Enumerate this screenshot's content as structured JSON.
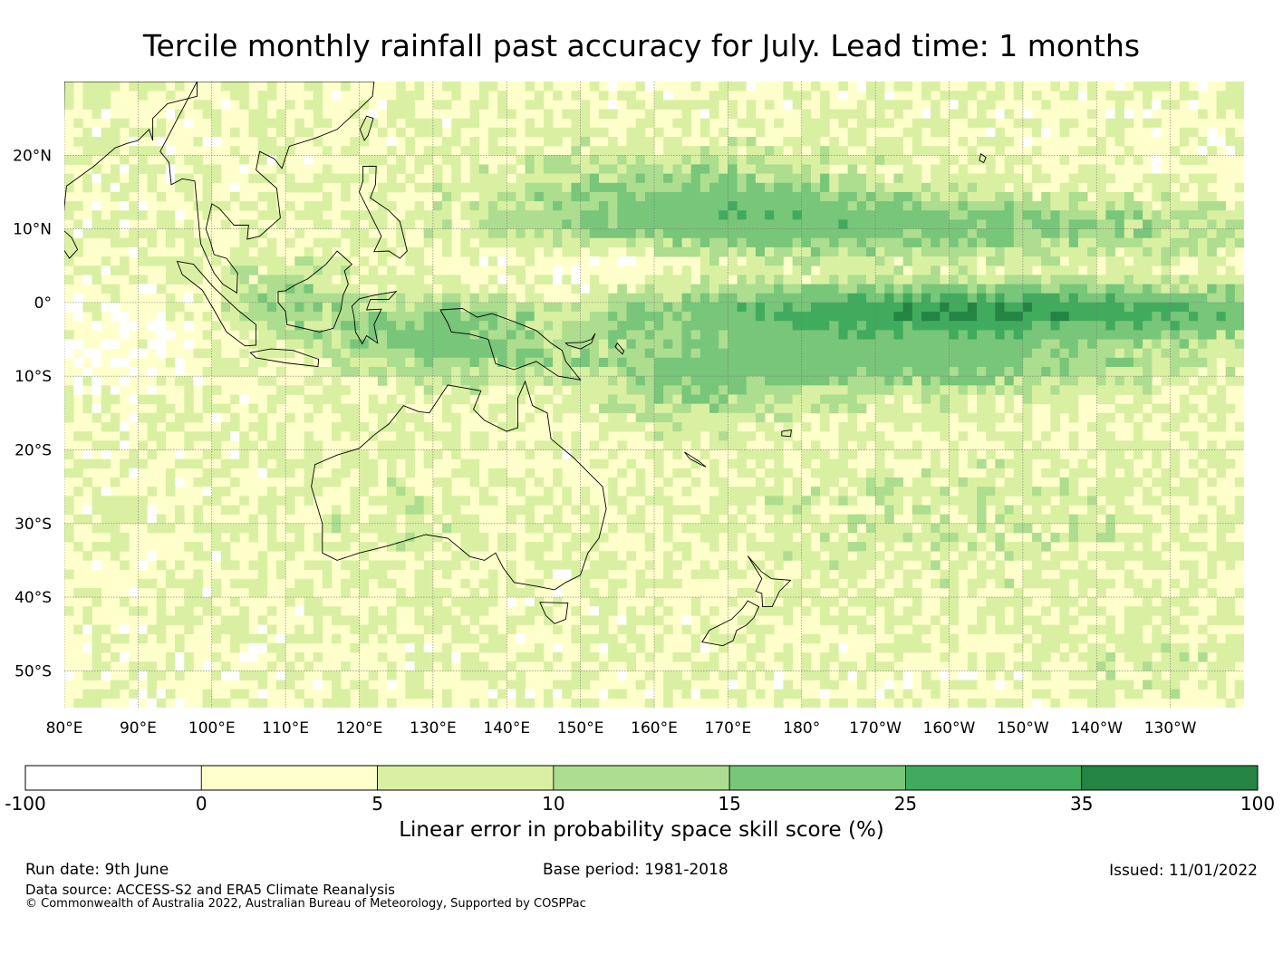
{
  "title": "Tercile monthly rainfall past accuracy for July. Lead time: 1 months",
  "map": {
    "lon_range": [
      80,
      240
    ],
    "lat_range": [
      -55,
      30
    ],
    "lon_ticks": [
      {
        "value": 80,
        "label": "80°E"
      },
      {
        "value": 90,
        "label": "90°E"
      },
      {
        "value": 100,
        "label": "100°E"
      },
      {
        "value": 110,
        "label": "110°E"
      },
      {
        "value": 120,
        "label": "120°E"
      },
      {
        "value": 130,
        "label": "130°E"
      },
      {
        "value": 140,
        "label": "140°E"
      },
      {
        "value": 150,
        "label": "150°E"
      },
      {
        "value": 160,
        "label": "160°E"
      },
      {
        "value": 170,
        "label": "170°E"
      },
      {
        "value": 180,
        "label": "180°"
      },
      {
        "value": 190,
        "label": "170°W"
      },
      {
        "value": 200,
        "label": "160°W"
      },
      {
        "value": 210,
        "label": "150°W"
      },
      {
        "value": 220,
        "label": "140°W"
      },
      {
        "value": 230,
        "label": "130°W"
      }
    ],
    "lat_ticks": [
      {
        "value": 20,
        "label": "20°N"
      },
      {
        "value": 10,
        "label": "10°N"
      },
      {
        "value": 0,
        "label": "0°"
      },
      {
        "value": -10,
        "label": "10°S"
      },
      {
        "value": -20,
        "label": "20°S"
      },
      {
        "value": -30,
        "label": "30°S"
      },
      {
        "value": -40,
        "label": "40°S"
      },
      {
        "value": -50,
        "label": "50°S"
      }
    ],
    "gridlines": true,
    "landmasses": [
      "Australia",
      "New Zealand",
      "New Guinea",
      "Borneo",
      "Sumatra",
      "Philippines",
      "Southeast Asia"
    ]
  },
  "colorbar": {
    "bins": [
      {
        "from": -100,
        "to": 0,
        "color": "#ffffff"
      },
      {
        "from": 0,
        "to": 5,
        "color": "#ffffcc"
      },
      {
        "from": 5,
        "to": 10,
        "color": "#d9f0a3"
      },
      {
        "from": 10,
        "to": 15,
        "color": "#addd8e"
      },
      {
        "from": 15,
        "to": 25,
        "color": "#78c679"
      },
      {
        "from": 25,
        "to": 35,
        "color": "#41ab5d"
      },
      {
        "from": 35,
        "to": 100,
        "color": "#238443"
      }
    ],
    "tick_labels": [
      "-100",
      "0",
      "5",
      "10",
      "15",
      "25",
      "35",
      "100"
    ],
    "label": "Linear error in probability space skill score (%)"
  },
  "footer": {
    "run_date": "Run date: 9th June",
    "base_period": "Base period: 1981-2018",
    "issued": "Issued: 11/01/2022",
    "data_source": "Data source: ACCESS-S2 and ERA5 Climate Reanalysis",
    "copyright": "© Commonwealth of Australia 2022, Australian Bureau of Meteorology, Supported by COSPPac"
  }
}
